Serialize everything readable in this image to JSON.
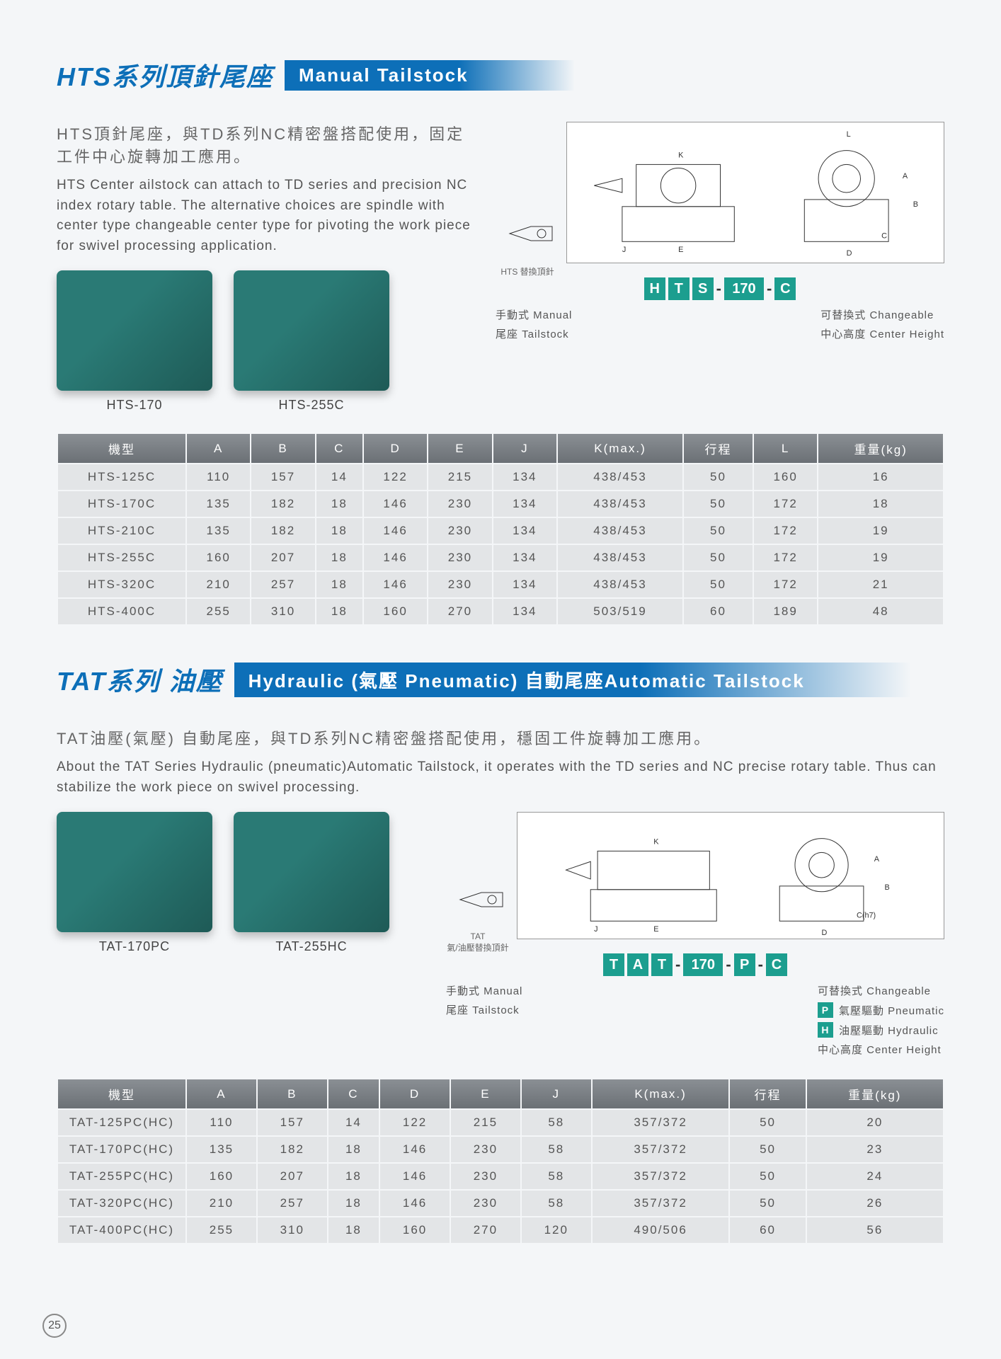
{
  "page_number": "25",
  "section1": {
    "title_cn": "HTS系列頂針尾座",
    "title_en": "Manual Tailstock",
    "desc_cn": "HTS頂針尾座，與TD系列NC精密盤搭配使用，固定工件中心旋轉加工應用。",
    "desc_en": "HTS Center ailstock can attach to TD series and precision NC index rotary table. The alternative choices are spindle with center type changeable center type for pivoting the work piece for swivel processing application.",
    "products": [
      {
        "label": "HTS-170"
      },
      {
        "label": "HTS-255C"
      }
    ],
    "hts_small_label": "HTS 替換頂針",
    "code_parts": [
      "H",
      "T",
      "S",
      "170",
      "C"
    ],
    "legend_left": [
      "手動式 Manual",
      "尾座 Tailstock"
    ],
    "legend_right": [
      "可替換式 Changeable",
      "中心高度 Center Height"
    ],
    "table": {
      "columns": [
        "機型",
        "A",
        "B",
        "C",
        "D",
        "E",
        "J",
        "K(max.)",
        "行程",
        "L",
        "重量(kg)"
      ],
      "rows": [
        [
          "HTS-125C",
          "110",
          "157",
          "14",
          "122",
          "215",
          "134",
          "438/453",
          "50",
          "160",
          "16"
        ],
        [
          "HTS-170C",
          "135",
          "182",
          "18",
          "146",
          "230",
          "134",
          "438/453",
          "50",
          "172",
          "18"
        ],
        [
          "HTS-210C",
          "135",
          "182",
          "18",
          "146",
          "230",
          "134",
          "438/453",
          "50",
          "172",
          "19"
        ],
        [
          "HTS-255C",
          "160",
          "207",
          "18",
          "146",
          "230",
          "134",
          "438/453",
          "50",
          "172",
          "19"
        ],
        [
          "HTS-320C",
          "210",
          "257",
          "18",
          "146",
          "230",
          "134",
          "438/453",
          "50",
          "172",
          "21"
        ],
        [
          "HTS-400C",
          "255",
          "310",
          "18",
          "160",
          "270",
          "134",
          "503/519",
          "60",
          "189",
          "48"
        ]
      ]
    }
  },
  "section2": {
    "title_cn": "TAT系列 油壓",
    "title_en": "Hydraulic (氣壓 Pneumatic) 自動尾座Automatic Tailstock",
    "desc_cn": "TAT油壓(氣壓) 自動尾座，與TD系列NC精密盤搭配使用，穩固工件旋轉加工應用。",
    "desc_en": "About the TAT Series Hydraulic (pneumatic)Automatic Tailstock, it operates with the TD series and NC precise rotary table. Thus can stabilize the work piece on swivel processing.",
    "products": [
      {
        "label": "TAT-170PC"
      },
      {
        "label": "TAT-255HC"
      }
    ],
    "tat_small_label": "TAT\n氣/油壓替換頂針",
    "code_parts": [
      "T",
      "A",
      "T",
      "170",
      "P",
      "C"
    ],
    "legend_left": [
      "手動式 Manual",
      "尾座 Tailstock"
    ],
    "legend_right": [
      {
        "badge": "",
        "text": "可替換式 Changeable"
      },
      {
        "badge": "P",
        "text": "氣壓驅動 Pneumatic"
      },
      {
        "badge": "H",
        "text": "油壓驅動 Hydraulic"
      },
      {
        "badge": "",
        "text": "中心高度 Center Height"
      }
    ],
    "table": {
      "columns": [
        "機型",
        "A",
        "B",
        "C",
        "D",
        "E",
        "J",
        "K(max.)",
        "行程",
        "重量(kg)"
      ],
      "rows": [
        [
          "TAT-125PC(HC)",
          "110",
          "157",
          "14",
          "122",
          "215",
          "58",
          "357/372",
          "50",
          "20"
        ],
        [
          "TAT-170PC(HC)",
          "135",
          "182",
          "18",
          "146",
          "230",
          "58",
          "357/372",
          "50",
          "23"
        ],
        [
          "TAT-255PC(HC)",
          "160",
          "207",
          "18",
          "146",
          "230",
          "58",
          "357/372",
          "50",
          "24"
        ],
        [
          "TAT-320PC(HC)",
          "210",
          "257",
          "18",
          "146",
          "230",
          "58",
          "357/372",
          "50",
          "26"
        ],
        [
          "TAT-400PC(HC)",
          "255",
          "310",
          "18",
          "160",
          "270",
          "120",
          "490/506",
          "60",
          "56"
        ]
      ]
    }
  },
  "colors": {
    "accent_blue": "#0d6fb8",
    "teal": "#1c9e8f",
    "th_grad_top": "#8a8f94",
    "th_grad_bot": "#6b7075",
    "td_bg": "#e3e5e7",
    "body_bg": "#f4f6f8"
  }
}
